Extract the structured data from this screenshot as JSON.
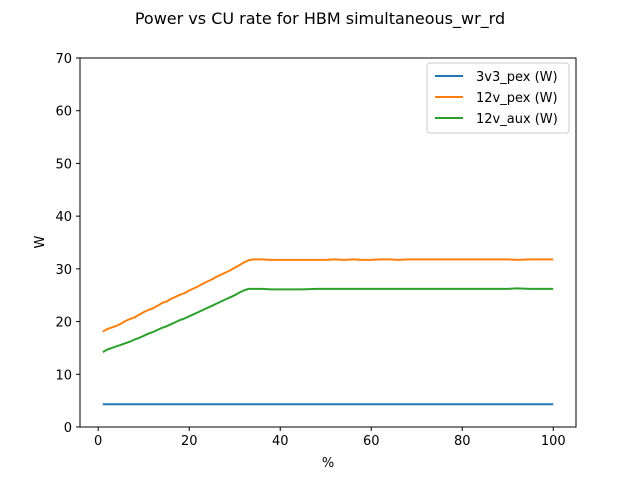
{
  "chart_data": {
    "type": "line",
    "title": "Power vs CU rate for HBM simultaneous_wr_rd",
    "xlabel": "%",
    "ylabel": "W",
    "xlim": [
      -4,
      105
    ],
    "ylim": [
      0,
      70
    ],
    "xticks": [
      0,
      20,
      40,
      60,
      80,
      100
    ],
    "yticks": [
      0,
      10,
      20,
      30,
      40,
      50,
      60,
      70
    ],
    "grid": false,
    "legend_position": "upper right",
    "series": [
      {
        "name": "3v3_pex (W)",
        "color": "#1f77b4",
        "x": [
          1,
          100
        ],
        "y": [
          4.3,
          4.3
        ]
      },
      {
        "name": "12v_pex (W)",
        "color": "#ff7f0e",
        "x": [
          1,
          2,
          3,
          4,
          5,
          6,
          7,
          8,
          9,
          10,
          11,
          12,
          13,
          14,
          15,
          16,
          17,
          18,
          19,
          20,
          21,
          22,
          23,
          24,
          25,
          26,
          27,
          28,
          29,
          30,
          31,
          32,
          33,
          34,
          36,
          38,
          40,
          45,
          50,
          52,
          54,
          56,
          58,
          60,
          62,
          64,
          66,
          68,
          70,
          75,
          80,
          85,
          90,
          92,
          95,
          100
        ],
        "y": [
          18.1,
          18.6,
          18.9,
          19.2,
          19.6,
          20.1,
          20.5,
          20.8,
          21.3,
          21.8,
          22.2,
          22.5,
          23.0,
          23.5,
          23.8,
          24.3,
          24.7,
          25.1,
          25.4,
          25.9,
          26.3,
          26.7,
          27.2,
          27.6,
          28.0,
          28.5,
          28.9,
          29.3,
          29.7,
          30.2,
          30.7,
          31.2,
          31.6,
          31.8,
          31.8,
          31.7,
          31.7,
          31.7,
          31.7,
          31.8,
          31.7,
          31.8,
          31.7,
          31.7,
          31.8,
          31.8,
          31.7,
          31.8,
          31.8,
          31.8,
          31.8,
          31.8,
          31.8,
          31.7,
          31.8,
          31.8
        ]
      },
      {
        "name": "12v_aux (W)",
        "color": "#2ca02c",
        "x": [
          1,
          2,
          3,
          4,
          5,
          6,
          7,
          8,
          9,
          10,
          11,
          12,
          13,
          14,
          15,
          16,
          17,
          18,
          19,
          20,
          21,
          22,
          23,
          24,
          25,
          26,
          27,
          28,
          29,
          30,
          31,
          32,
          33,
          34,
          36,
          38,
          40,
          45,
          48,
          50,
          55,
          60,
          70,
          80,
          90,
          92,
          95,
          100
        ],
        "y": [
          14.2,
          14.7,
          15.0,
          15.3,
          15.6,
          15.9,
          16.2,
          16.6,
          16.9,
          17.3,
          17.7,
          18.0,
          18.4,
          18.8,
          19.1,
          19.5,
          19.9,
          20.3,
          20.6,
          21.0,
          21.4,
          21.8,
          22.2,
          22.6,
          23.0,
          23.4,
          23.8,
          24.2,
          24.6,
          25.0,
          25.5,
          25.9,
          26.2,
          26.2,
          26.2,
          26.1,
          26.1,
          26.1,
          26.2,
          26.2,
          26.2,
          26.2,
          26.2,
          26.2,
          26.2,
          26.3,
          26.2,
          26.2
        ]
      }
    ]
  }
}
